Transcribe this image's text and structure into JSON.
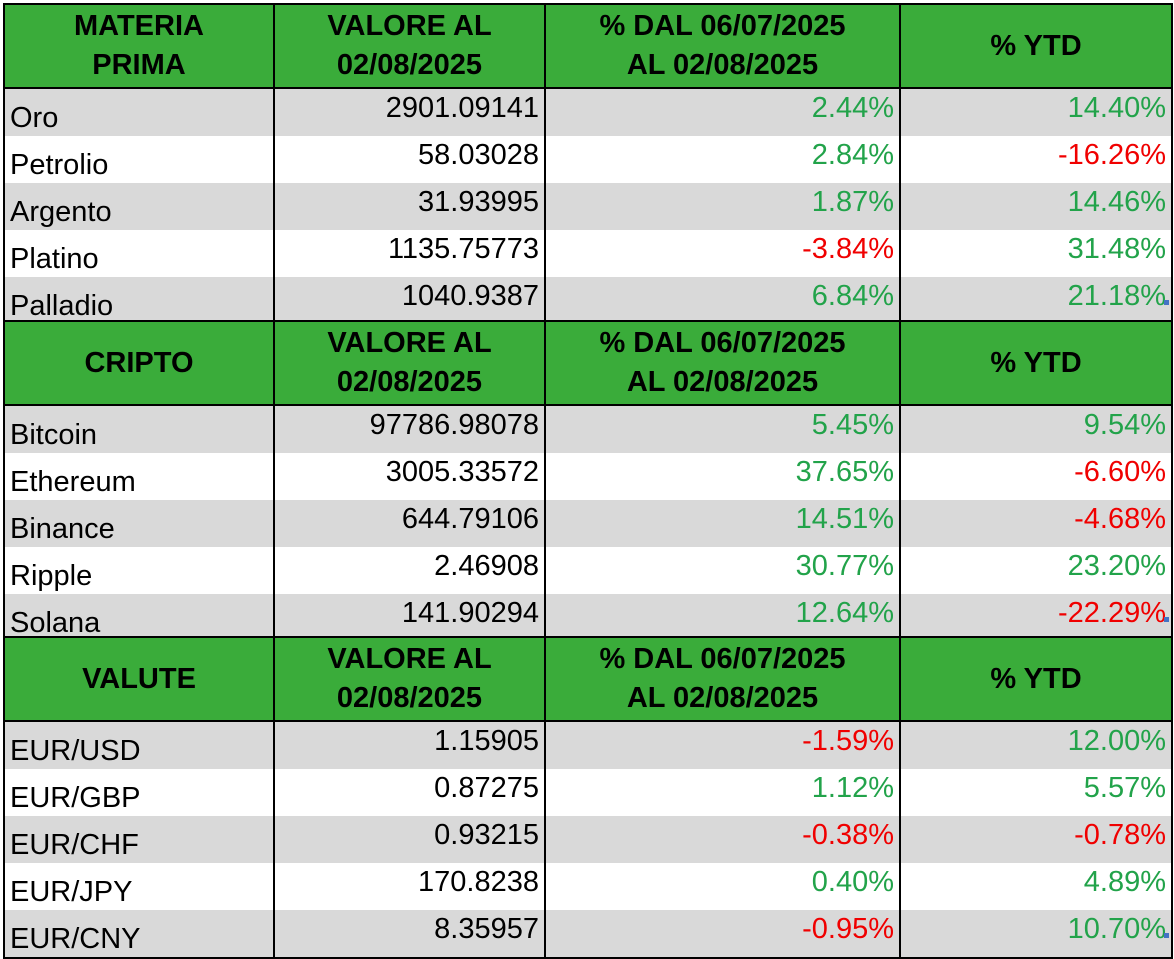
{
  "colors": {
    "header_bg": "#3aac3a",
    "row_shaded": "#d9d9d9",
    "positive": "#22a34a",
    "negative": "#f00000"
  },
  "tables": [
    {
      "headers": [
        "MATERIA\nPRIMA",
        "VALORE AL\n02/08/2025",
        "% DAL 06/07/2025\nAL 02/08/2025",
        "% YTD"
      ],
      "rows": [
        {
          "name": "Oro",
          "value": "2901.09141",
          "change": "2.44%",
          "ytd": "14.40%"
        },
        {
          "name": "Petrolio",
          "value": "58.03028",
          "change": "2.84%",
          "ytd": "-16.26%"
        },
        {
          "name": "Argento",
          "value": "31.93995",
          "change": "1.87%",
          "ytd": "14.46%"
        },
        {
          "name": "Platino",
          "value": "1135.75773",
          "change": "-3.84%",
          "ytd": "31.48%"
        },
        {
          "name": "Palladio",
          "value": "1040.9387",
          "change": "6.84%",
          "ytd": "21.18%"
        }
      ]
    },
    {
      "headers": [
        "CRIPTO",
        "VALORE AL\n02/08/2025",
        "% DAL 06/07/2025\nAL 02/08/2025",
        "% YTD"
      ],
      "rows": [
        {
          "name": "Bitcoin",
          "value": "97786.98078",
          "change": "5.45%",
          "ytd": "9.54%"
        },
        {
          "name": "Ethereum",
          "value": "3005.33572",
          "change": "37.65%",
          "ytd": "-6.60%"
        },
        {
          "name": "Binance",
          "value": "644.79106",
          "change": "14.51%",
          "ytd": "-4.68%"
        },
        {
          "name": "Ripple",
          "value": "2.46908",
          "change": "30.77%",
          "ytd": "23.20%"
        },
        {
          "name": "Solana",
          "value": "141.90294",
          "change": "12.64%",
          "ytd": "-22.29%"
        }
      ]
    },
    {
      "headers": [
        "VALUTE",
        "VALORE AL\n02/08/2025",
        "% DAL 06/07/2025\nAL 02/08/2025",
        "% YTD"
      ],
      "rows": [
        {
          "name": "EUR/USD",
          "value": "1.15905",
          "change": "-1.59%",
          "ytd": "12.00%"
        },
        {
          "name": "EUR/GBP",
          "value": "0.87275",
          "change": "1.12%",
          "ytd": "5.57%"
        },
        {
          "name": "EUR/CHF",
          "value": "0.93215",
          "change": "-0.38%",
          "ytd": "-0.78%"
        },
        {
          "name": "EUR/JPY",
          "value": "170.8238",
          "change": "0.40%",
          "ytd": "4.89%"
        },
        {
          "name": "EUR/CNY",
          "value": "8.35957",
          "change": "-0.95%",
          "ytd": "10.70%"
        }
      ]
    }
  ]
}
